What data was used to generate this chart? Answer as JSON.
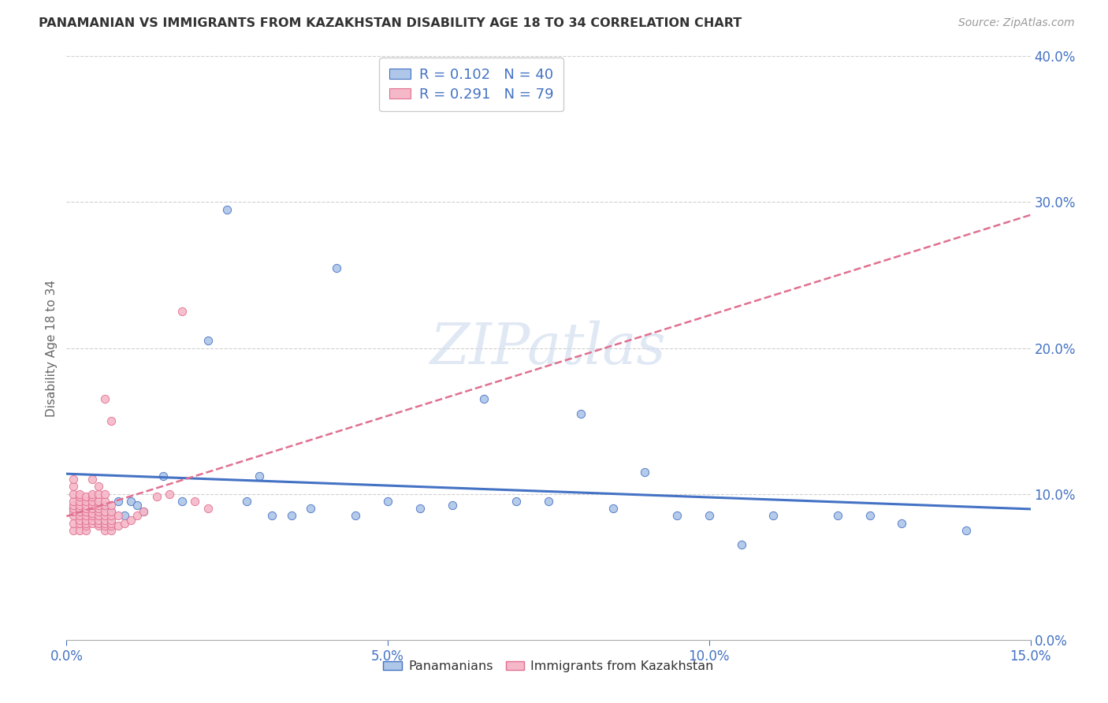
{
  "title": "PANAMANIAN VS IMMIGRANTS FROM KAZAKHSTAN DISABILITY AGE 18 TO 34 CORRELATION CHART",
  "source": "Source: ZipAtlas.com",
  "ylabel": "Disability Age 18 to 34",
  "xlim": [
    0,
    0.15
  ],
  "ylim": [
    0,
    0.4
  ],
  "xticks": [
    0.0,
    0.05,
    0.1,
    0.15
  ],
  "xtick_labels": [
    "0.0%",
    "5.0%",
    "10.0%",
    "15.0%"
  ],
  "yticks": [
    0.0,
    0.1,
    0.2,
    0.3,
    0.4
  ],
  "ytick_labels": [
    "0.0%",
    "10.0%",
    "20.0%",
    "30.0%",
    "40.0%"
  ],
  "blue_R": 0.102,
  "blue_N": 40,
  "pink_R": 0.291,
  "pink_N": 79,
  "blue_scatter_color": "#aec6e8",
  "blue_edge_color": "#4472c4",
  "pink_scatter_color": "#f5b8c8",
  "pink_edge_color": "#e07090",
  "blue_line_color": "#4472c4",
  "pink_line_color": "#e07090",
  "axis_color": "#4472c4",
  "grid_color": "#d0d0d0",
  "watermark": "ZIPatlas",
  "blue_scatter_x": [
    0.001,
    0.002,
    0.003,
    0.004,
    0.005,
    0.006,
    0.007,
    0.008,
    0.009,
    0.01,
    0.011,
    0.012,
    0.015,
    0.018,
    0.022,
    0.025,
    0.028,
    0.03,
    0.032,
    0.035,
    0.038,
    0.042,
    0.045,
    0.05,
    0.055,
    0.06,
    0.065,
    0.07,
    0.075,
    0.08,
    0.085,
    0.09,
    0.095,
    0.1,
    0.105,
    0.11,
    0.12,
    0.125,
    0.13,
    0.14
  ],
  "blue_scatter_y": [
    0.09,
    0.085,
    0.095,
    0.088,
    0.092,
    0.09,
    0.088,
    0.095,
    0.085,
    0.095,
    0.092,
    0.088,
    0.112,
    0.095,
    0.205,
    0.295,
    0.095,
    0.112,
    0.085,
    0.085,
    0.09,
    0.255,
    0.085,
    0.095,
    0.09,
    0.092,
    0.165,
    0.095,
    0.095,
    0.155,
    0.09,
    0.115,
    0.085,
    0.085,
    0.065,
    0.085,
    0.085,
    0.085,
    0.08,
    0.075
  ],
  "pink_scatter_x": [
    0.001,
    0.001,
    0.001,
    0.001,
    0.001,
    0.001,
    0.001,
    0.001,
    0.001,
    0.001,
    0.002,
    0.002,
    0.002,
    0.002,
    0.002,
    0.002,
    0.002,
    0.002,
    0.002,
    0.002,
    0.003,
    0.003,
    0.003,
    0.003,
    0.003,
    0.003,
    0.003,
    0.003,
    0.003,
    0.003,
    0.004,
    0.004,
    0.004,
    0.004,
    0.004,
    0.004,
    0.004,
    0.004,
    0.004,
    0.004,
    0.005,
    0.005,
    0.005,
    0.005,
    0.005,
    0.005,
    0.005,
    0.005,
    0.005,
    0.005,
    0.006,
    0.006,
    0.006,
    0.006,
    0.006,
    0.006,
    0.006,
    0.006,
    0.006,
    0.006,
    0.007,
    0.007,
    0.007,
    0.007,
    0.007,
    0.007,
    0.007,
    0.007,
    0.008,
    0.008,
    0.009,
    0.01,
    0.011,
    0.012,
    0.014,
    0.016,
    0.018,
    0.02,
    0.022
  ],
  "pink_scatter_y": [
    0.075,
    0.08,
    0.085,
    0.088,
    0.09,
    0.092,
    0.095,
    0.1,
    0.105,
    0.11,
    0.075,
    0.08,
    0.082,
    0.085,
    0.088,
    0.09,
    0.092,
    0.095,
    0.098,
    0.1,
    0.075,
    0.078,
    0.08,
    0.082,
    0.085,
    0.088,
    0.09,
    0.092,
    0.095,
    0.098,
    0.08,
    0.082,
    0.085,
    0.087,
    0.09,
    0.092,
    0.095,
    0.098,
    0.1,
    0.11,
    0.078,
    0.08,
    0.082,
    0.085,
    0.088,
    0.09,
    0.092,
    0.095,
    0.1,
    0.105,
    0.075,
    0.078,
    0.08,
    0.082,
    0.085,
    0.088,
    0.092,
    0.095,
    0.1,
    0.165,
    0.075,
    0.078,
    0.08,
    0.082,
    0.085,
    0.088,
    0.092,
    0.15,
    0.078,
    0.085,
    0.08,
    0.082,
    0.085,
    0.088,
    0.098,
    0.1,
    0.225,
    0.095,
    0.09
  ]
}
